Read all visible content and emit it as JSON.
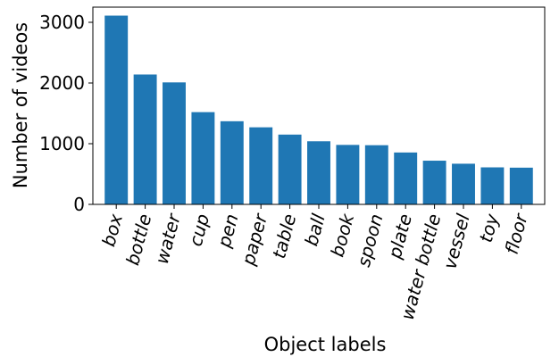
{
  "chart_data": {
    "type": "bar",
    "title": "",
    "xlabel": "Object labels",
    "ylabel": "Number of videos",
    "categories": [
      "box",
      "bottle",
      "water",
      "cup",
      "pen",
      "paper",
      "table",
      "ball",
      "book",
      "spoon",
      "plate",
      "water bottle",
      "vessel",
      "toy",
      "floor"
    ],
    "values": [
      3110,
      2140,
      2010,
      1520,
      1370,
      1270,
      1150,
      1040,
      980,
      975,
      855,
      720,
      670,
      610,
      605
    ],
    "ylim": [
      0,
      3250
    ],
    "yticks": [
      0,
      1000,
      2000,
      3000
    ],
    "grid": false,
    "bar_color": "#1f77b4"
  }
}
